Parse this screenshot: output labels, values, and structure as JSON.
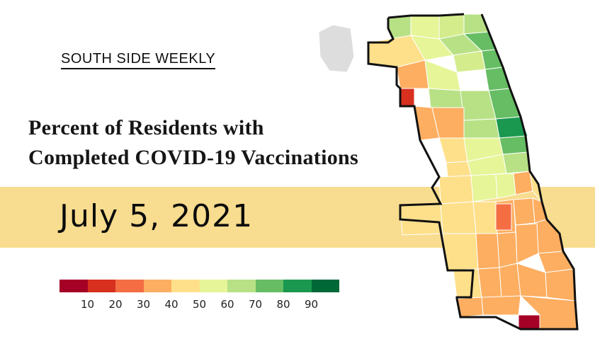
{
  "publication": "SOUTH SIDE WEEKLY",
  "title": {
    "line1": "Percent of Residents with",
    "line2": "Completed COVID-19 Vaccinations"
  },
  "date": "July 5, 2021",
  "colors": {
    "band": "#f8dc8f",
    "outline": "#111111",
    "unshaded_area": "#dddddd"
  },
  "legend": {
    "bins": [
      {
        "label": "",
        "color": "#a50026"
      },
      {
        "label": "10",
        "color": "#d7301f"
      },
      {
        "label": "20",
        "color": "#f46d43"
      },
      {
        "label": "30",
        "color": "#fdae61"
      },
      {
        "label": "40",
        "color": "#fee08b"
      },
      {
        "label": "50",
        "color": "#e6f598"
      },
      {
        "label": "60",
        "color": "#b8e186"
      },
      {
        "label": "70",
        "color": "#66bd63"
      },
      {
        "label": "80",
        "color": "#1a9850"
      },
      {
        "label": "90",
        "color": "#006837"
      }
    ]
  },
  "map_regions": [
    {
      "name": "far-north-northwest",
      "color": "#b8e186"
    },
    {
      "name": "far-north-west",
      "color": "#e6f598"
    },
    {
      "name": "far-north",
      "color": "#d4ec8c"
    },
    {
      "name": "rogers-park",
      "color": "#b8e186"
    },
    {
      "name": "edgewater",
      "color": "#66bd63"
    },
    {
      "name": "uptown",
      "color": "#66bd63"
    },
    {
      "name": "lakeview",
      "color": "#66bd63"
    },
    {
      "name": "north-park",
      "color": "#b8e186"
    },
    {
      "name": "albany-park",
      "color": "#d4ec8c"
    },
    {
      "name": "portage-park",
      "color": "#e6f598"
    },
    {
      "name": "dunning",
      "color": "#fee08b"
    },
    {
      "name": "belmont-cragin",
      "color": "#fdae61"
    },
    {
      "name": "montclare",
      "color": "#d7301f"
    },
    {
      "name": "avondale",
      "color": "#e6f598"
    },
    {
      "name": "logan-square",
      "color": "#b8e186"
    },
    {
      "name": "lincoln-park",
      "color": "#66bd63"
    },
    {
      "name": "west-town",
      "color": "#b8e186"
    },
    {
      "name": "near-north",
      "color": "#1a9850"
    },
    {
      "name": "austin",
      "color": "#fdae61"
    },
    {
      "name": "humboldt-park",
      "color": "#fdae61"
    },
    {
      "name": "garfield-park",
      "color": "#fee08b"
    },
    {
      "name": "near-west",
      "color": "#b8e186"
    },
    {
      "name": "loop",
      "color": "#66bd63"
    },
    {
      "name": "lower-west",
      "color": "#e6f598"
    },
    {
      "name": "bridgeport",
      "color": "#e6f598"
    },
    {
      "name": "south-loop",
      "color": "#b8e186"
    },
    {
      "name": "south-lawndale",
      "color": "#fee08b"
    },
    {
      "name": "garfield-ridge",
      "color": "#fee08b"
    },
    {
      "name": "archer-heights",
      "color": "#e6f598"
    },
    {
      "name": "mckinley-park",
      "color": "#e6f598"
    },
    {
      "name": "douglas",
      "color": "#fdae61"
    },
    {
      "name": "oakland",
      "color": "#fee08b"
    },
    {
      "name": "clearing",
      "color": "#fee08b"
    },
    {
      "name": "west-lawn",
      "color": "#fee08b"
    },
    {
      "name": "gage-park",
      "color": "#fee08b"
    },
    {
      "name": "new-city",
      "color": "#fdae61"
    },
    {
      "name": "fuller-park",
      "color": "#f46d43"
    },
    {
      "name": "washington-park",
      "color": "#fdae61"
    },
    {
      "name": "hyde-park",
      "color": "#fdae61"
    },
    {
      "name": "south-shore",
      "color": "#fdae61"
    },
    {
      "name": "ashburn",
      "color": "#fee08b"
    },
    {
      "name": "chicago-lawn",
      "color": "#fdae61"
    },
    {
      "name": "englewood",
      "color": "#fdae61"
    },
    {
      "name": "chatham",
      "color": "#fdae61"
    },
    {
      "name": "south-chicago",
      "color": "#fdae61"
    },
    {
      "name": "beverly",
      "color": "#fee08b"
    },
    {
      "name": "washington-heights",
      "color": "#fdae61"
    },
    {
      "name": "roseland",
      "color": "#fdae61"
    },
    {
      "name": "pullman",
      "color": "#fdae61"
    },
    {
      "name": "east-side",
      "color": "#fdae61"
    },
    {
      "name": "morgan-park",
      "color": "#fdae61"
    },
    {
      "name": "west-pullman",
      "color": "#fdae61"
    },
    {
      "name": "riverdale",
      "color": "#a50026"
    },
    {
      "name": "hegewisch",
      "color": "#fdae61"
    },
    {
      "name": "ohare",
      "color": "#dddddd"
    }
  ]
}
